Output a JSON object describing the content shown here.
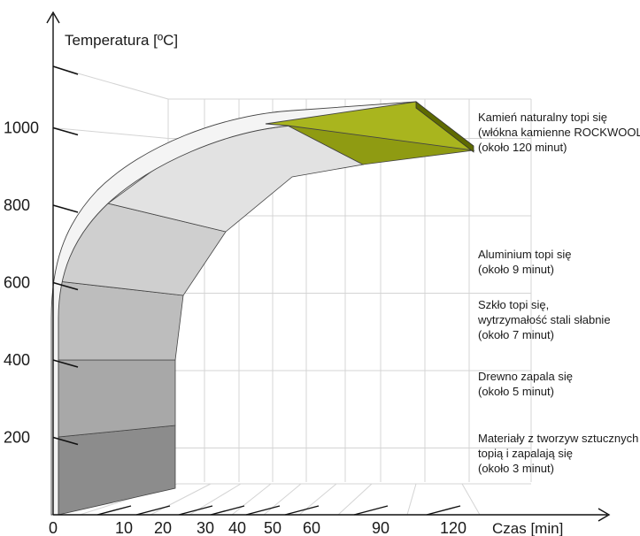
{
  "chart_data": {
    "type": "area",
    "title": "",
    "ylabel": "Temperatura [ºC]",
    "xlabel": "Czas [min]",
    "y_ticks": [
      200,
      400,
      600,
      800,
      1000
    ],
    "x_ticks": [
      0,
      10,
      20,
      30,
      40,
      50,
      60,
      90,
      120
    ],
    "ylim": [
      0,
      1200
    ],
    "xlim": [
      0,
      130
    ],
    "bands": [
      {
        "y_from": 0,
        "y_to": 200,
        "color": "#8c8c8c"
      },
      {
        "y_from": 200,
        "y_to": 400,
        "color": "#a8a8a8"
      },
      {
        "y_from": 400,
        "y_to": 600,
        "color": "#bdbdbd"
      },
      {
        "y_from": 600,
        "y_to": 800,
        "color": "#cfcfcf"
      },
      {
        "y_from": 800,
        "y_to": 1000,
        "color": "#e2e2e2"
      },
      {
        "y_from": 1000,
        "y_to": 1100,
        "color": "#8f9b12"
      }
    ],
    "annotations": [
      {
        "y": 1000,
        "lines": [
          "Kamień naturalny topi się",
          "(włókna kamienne ROCKWOOL)",
          "(około 120 minut)"
        ]
      },
      {
        "y": 700,
        "lines": [
          "Aluminium topi się",
          "(około 9 minut)"
        ]
      },
      {
        "y": 530,
        "lines": [
          "Szkło topi się,",
          "wytrzymałość stali słabnie",
          "(około 7 minut)"
        ]
      },
      {
        "y": 330,
        "lines": [
          "Drewno zapala się",
          "(około 5 minut)"
        ]
      },
      {
        "y": 120,
        "lines": [
          "Materiały z tworzyw sztucznych",
          "topią i zapalają się",
          "(około 3 minut)"
        ]
      }
    ],
    "colors": {
      "accent": "#8f9b12",
      "accent_dark": "#5e6a00",
      "grid": "#d4d4d4",
      "axis": "#111111"
    }
  }
}
